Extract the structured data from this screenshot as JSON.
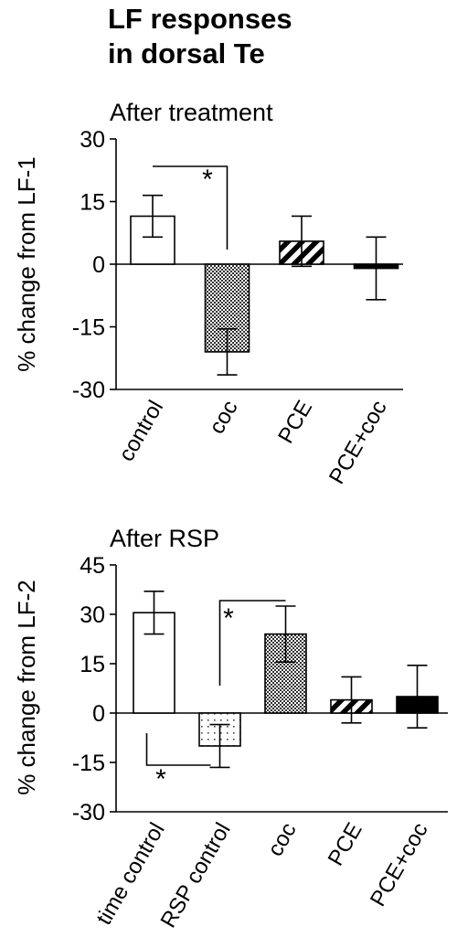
{
  "header": {
    "title_line1": "LF responses",
    "title_line2": "in dorsal Te"
  },
  "chart_data": [
    {
      "type": "bar",
      "title": "After treatment",
      "ylabel": "% change from LF-1",
      "xlabel": "",
      "ylim": [
        -30,
        30
      ],
      "yticks": [
        30,
        15,
        0,
        -15,
        -30
      ],
      "categories": [
        "control",
        "coc",
        "PCE",
        "PCE+coc"
      ],
      "values": [
        11.5,
        -21,
        5.5,
        -1
      ],
      "errors": [
        5,
        5.5,
        6,
        7.5
      ],
      "fills": [
        "white",
        "checker",
        "stripes",
        "black"
      ],
      "significance": [
        {
          "between": [
            0,
            1
          ],
          "label": "*"
        }
      ],
      "grid": false
    },
    {
      "type": "bar",
      "title": "After RSP",
      "ylabel": "% change from LF-2",
      "xlabel": "",
      "ylim": [
        -30,
        45
      ],
      "yticks": [
        45,
        30,
        15,
        0,
        -15,
        -30
      ],
      "categories": [
        "time control",
        "RSP control",
        "coc",
        "PCE",
        "PCE+coc"
      ],
      "values": [
        30.5,
        -10,
        24,
        4,
        5
      ],
      "errors": [
        6.5,
        6.5,
        8.5,
        7,
        9.5
      ],
      "fills": [
        "white",
        "dotted",
        "checker",
        "stripes",
        "black"
      ],
      "significance": [
        {
          "between": [
            0,
            1
          ],
          "label": "*"
        },
        {
          "between": [
            1,
            2
          ],
          "label": "*"
        }
      ],
      "grid": false
    }
  ]
}
